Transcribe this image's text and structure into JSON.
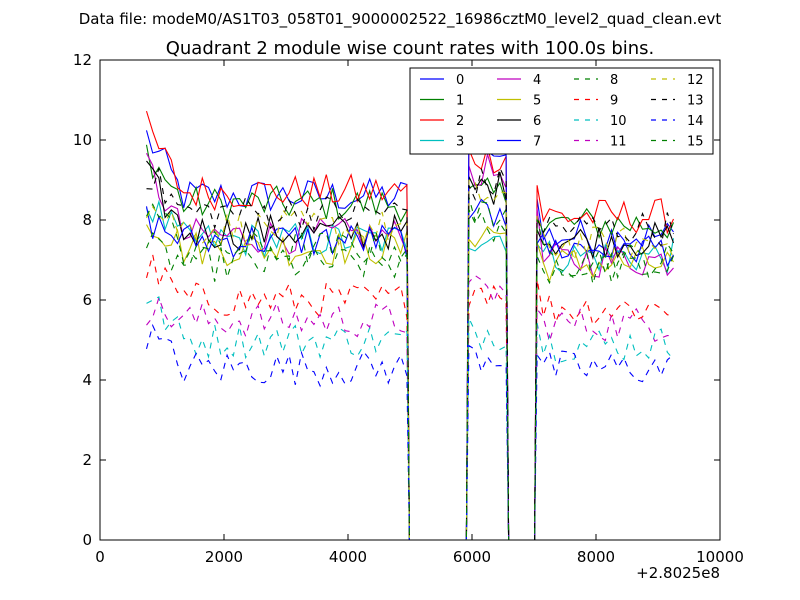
{
  "header": {
    "data_file": "Data file: modeM0/AS1T03_058T01_9000002522_16986cztM0_level2_quad_clean.evt"
  },
  "chart_data": {
    "type": "line",
    "title": "Quadrant 2 module wise count rates with 100.0s bins.",
    "xlabel": "",
    "ylabel": "",
    "xlim": [
      0,
      10000
    ],
    "ylim": [
      0,
      12
    ],
    "x_offset_label": "+2.8025e8",
    "xticks": [
      0,
      2000,
      4000,
      6000,
      8000,
      10000
    ],
    "xtick_labels": [
      "0",
      "2000",
      "4000",
      "6000",
      "8000",
      "10000"
    ],
    "yticks": [
      0,
      2,
      4,
      6,
      8,
      10,
      12
    ],
    "ytick_labels": [
      "0",
      "2",
      "4",
      "6",
      "8",
      "10",
      "12"
    ],
    "grid": false,
    "legend_position": "top-right",
    "segments": [
      {
        "start": 750,
        "end": 4950,
        "step": 100
      },
      {
        "start": 5950,
        "end": 6550,
        "step": 100
      },
      {
        "start": 7050,
        "end": 9250,
        "step": 100
      }
    ],
    "gaps": [
      {
        "from": 4950,
        "to": 5950,
        "value": 0
      },
      {
        "from": 6550,
        "to": 7050,
        "value": 0
      }
    ],
    "series": [
      {
        "name": "0",
        "color": "#0000ff",
        "style": "solid",
        "seg_levels": [
          8.6,
          8.2,
          7.6
        ],
        "start_boost": 1.5
      },
      {
        "name": "1",
        "color": "#008000",
        "style": "solid",
        "seg_levels": [
          8.4,
          8.6,
          7.9
        ],
        "start_boost": 1.3
      },
      {
        "name": "2",
        "color": "#ff0000",
        "style": "solid",
        "seg_levels": [
          8.7,
          9.6,
          8.1
        ],
        "start_boost": 1.6
      },
      {
        "name": "3",
        "color": "#00bfbf",
        "style": "solid",
        "seg_levels": [
          7.5,
          7.6,
          7.1
        ],
        "start_boost": 0.9
      },
      {
        "name": "4",
        "color": "#bf00bf",
        "style": "solid",
        "seg_levels": [
          7.6,
          9.2,
          7.0
        ],
        "start_boost": 1.8
      },
      {
        "name": "5",
        "color": "#bfbf00",
        "style": "solid",
        "seg_levels": [
          7.3,
          7.7,
          6.9
        ],
        "start_boost": 0.8
      },
      {
        "name": "6",
        "color": "#000000",
        "style": "solid",
        "seg_levels": [
          7.7,
          8.8,
          7.5
        ],
        "start_boost": 1.4
      },
      {
        "name": "7",
        "color": "#0000ff",
        "style": "solid",
        "seg_levels": [
          7.5,
          9.9,
          7.3
        ],
        "start_boost": 0.5
      },
      {
        "name": "8",
        "color": "#008000",
        "style": "dashed",
        "seg_levels": [
          6.9,
          8.2,
          6.8
        ],
        "start_boost": 0.4
      },
      {
        "name": "9",
        "color": "#ff0000",
        "style": "dashed",
        "seg_levels": [
          6.0,
          6.3,
          5.8
        ],
        "start_boost": 0.9
      },
      {
        "name": "10",
        "color": "#00bfbf",
        "style": "dashed",
        "seg_levels": [
          5.0,
          5.2,
          4.9
        ],
        "start_boost": 1.1
      },
      {
        "name": "11",
        "color": "#bf00bf",
        "style": "dashed",
        "seg_levels": [
          5.5,
          6.2,
          5.4
        ],
        "start_boost": 0.3
      },
      {
        "name": "12",
        "color": "#bfbf00",
        "style": "dashed",
        "seg_levels": [
          7.8,
          8.6,
          7.4
        ],
        "start_boost": 0.6
      },
      {
        "name": "13",
        "color": "#000000",
        "style": "dashed",
        "seg_levels": [
          8.2,
          8.9,
          7.8
        ],
        "start_boost": 1.0
      },
      {
        "name": "14",
        "color": "#0000ff",
        "style": "dashed",
        "seg_levels": [
          4.3,
          4.6,
          4.3
        ],
        "start_boost": 0.9
      },
      {
        "name": "15",
        "color": "#008000",
        "style": "dashed",
        "seg_levels": [
          7.3,
          7.9,
          7.0
        ],
        "start_boost": 1.2
      }
    ]
  }
}
